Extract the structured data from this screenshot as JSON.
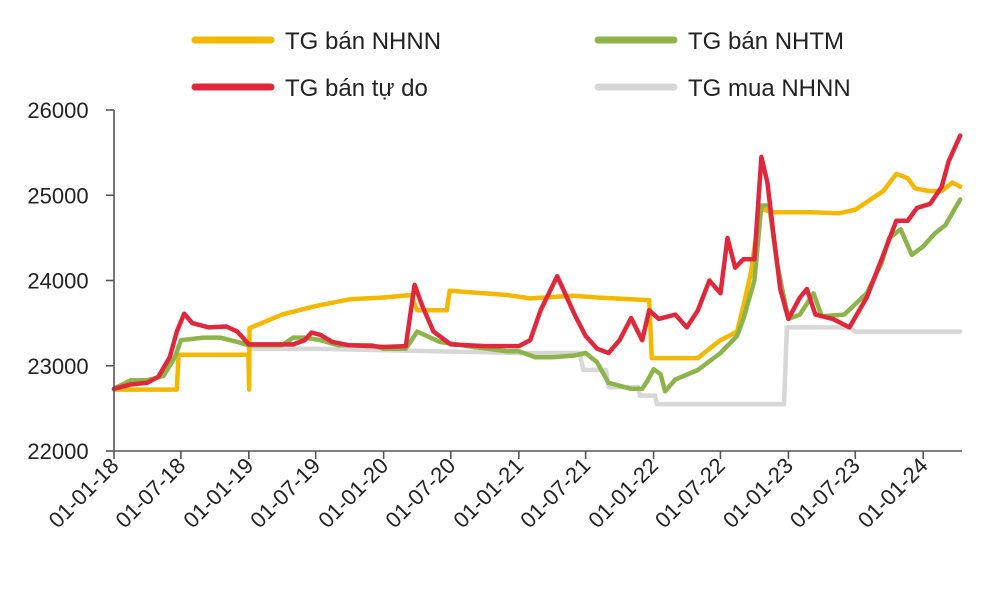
{
  "chart_data": {
    "type": "line",
    "x_type": "date",
    "xlim": [
      "2018-01-01",
      "2024-04-15"
    ],
    "x_ticks": [
      {
        "date": "2018-01-01",
        "label": "01-01-18"
      },
      {
        "date": "2018-07-01",
        "label": "01-07-18"
      },
      {
        "date": "2019-01-01",
        "label": "01-01-19"
      },
      {
        "date": "2019-07-01",
        "label": "01-07-19"
      },
      {
        "date": "2020-01-01",
        "label": "01-01-20"
      },
      {
        "date": "2020-07-01",
        "label": "01-07-20"
      },
      {
        "date": "2021-01-01",
        "label": "01-01-21"
      },
      {
        "date": "2021-07-01",
        "label": "01-07-21"
      },
      {
        "date": "2022-01-01",
        "label": "01-01-22"
      },
      {
        "date": "2022-07-01",
        "label": "01-07-22"
      },
      {
        "date": "2023-01-01",
        "label": "01-01-23"
      },
      {
        "date": "2023-07-01",
        "label": "01-07-23"
      },
      {
        "date": "2024-01-01",
        "label": "01-01-24"
      }
    ],
    "ylim": [
      22000,
      26000
    ],
    "y_ticks": [
      22000,
      23000,
      24000,
      25000,
      26000
    ],
    "grid": false,
    "legend_position": "top",
    "series": [
      {
        "name": "TG bán NHNN",
        "color": "#f5b800",
        "points": [
          [
            "2018-01-01",
            22720
          ],
          [
            "2018-06-20",
            22720
          ],
          [
            "2018-06-25",
            23130
          ],
          [
            "2018-12-31",
            23130
          ],
          [
            "2019-01-02",
            22720
          ],
          [
            "2019-01-03",
            23440
          ],
          [
            "2019-04-01",
            23600
          ],
          [
            "2019-07-01",
            23700
          ],
          [
            "2019-10-01",
            23780
          ],
          [
            "2020-01-01",
            23800
          ],
          [
            "2020-03-15",
            23830
          ],
          [
            "2020-04-01",
            23650
          ],
          [
            "2020-06-20",
            23650
          ],
          [
            "2020-06-28",
            23880
          ],
          [
            "2020-12-01",
            23830
          ],
          [
            "2021-02-01",
            23790
          ],
          [
            "2021-06-01",
            23820
          ],
          [
            "2021-08-01",
            23800
          ],
          [
            "2021-11-01",
            23780
          ],
          [
            "2021-12-20",
            23770
          ],
          [
            "2021-12-27",
            23090
          ],
          [
            "2022-05-01",
            23090
          ],
          [
            "2022-06-01",
            23200
          ],
          [
            "2022-07-01",
            23300
          ],
          [
            "2022-08-15",
            23400
          ],
          [
            "2022-09-01",
            23700
          ],
          [
            "2022-09-20",
            24060
          ],
          [
            "2022-10-17",
            24850
          ],
          [
            "2022-11-15",
            24800
          ],
          [
            "2023-03-01",
            24800
          ],
          [
            "2023-05-20",
            24790
          ],
          [
            "2023-07-01",
            24830
          ],
          [
            "2023-09-15",
            25050
          ],
          [
            "2023-10-20",
            25250
          ],
          [
            "2023-11-20",
            25200
          ],
          [
            "2023-12-10",
            25080
          ],
          [
            "2024-01-15",
            25050
          ],
          [
            "2024-02-20",
            25050
          ],
          [
            "2024-03-20",
            25150
          ],
          [
            "2024-04-10",
            25100
          ]
        ]
      },
      {
        "name": "TG bán NHTM",
        "color": "#8cb44a",
        "points": [
          [
            "2018-01-01",
            22730
          ],
          [
            "2018-02-15",
            22830
          ],
          [
            "2018-04-01",
            22830
          ],
          [
            "2018-05-15",
            22880
          ],
          [
            "2018-06-15",
            23100
          ],
          [
            "2018-07-01",
            23300
          ],
          [
            "2018-09-01",
            23330
          ],
          [
            "2018-10-15",
            23330
          ],
          [
            "2018-12-01",
            23280
          ],
          [
            "2019-01-01",
            23240
          ],
          [
            "2019-04-01",
            23240
          ],
          [
            "2019-05-01",
            23330
          ],
          [
            "2019-06-01",
            23330
          ],
          [
            "2019-07-15",
            23300
          ],
          [
            "2019-09-01",
            23240
          ],
          [
            "2019-12-01",
            23240
          ],
          [
            "2020-01-01",
            23200
          ],
          [
            "2020-03-01",
            23200
          ],
          [
            "2020-04-01",
            23400
          ],
          [
            "2020-06-01",
            23280
          ],
          [
            "2020-09-01",
            23220
          ],
          [
            "2020-12-01",
            23170
          ],
          [
            "2021-01-01",
            23170
          ],
          [
            "2021-02-15",
            23100
          ],
          [
            "2021-04-01",
            23100
          ],
          [
            "2021-06-01",
            23120
          ],
          [
            "2021-07-01",
            23150
          ],
          [
            "2021-08-01",
            23040
          ],
          [
            "2021-09-01",
            22800
          ],
          [
            "2021-11-01",
            22730
          ],
          [
            "2021-12-01",
            22730
          ],
          [
            "2021-12-15",
            22820
          ],
          [
            "2022-01-01",
            22960
          ],
          [
            "2022-01-20",
            22900
          ],
          [
            "2022-02-01",
            22700
          ],
          [
            "2022-03-01",
            22840
          ],
          [
            "2022-05-01",
            22950
          ],
          [
            "2022-07-01",
            23150
          ],
          [
            "2022-08-15",
            23350
          ],
          [
            "2022-09-01",
            23550
          ],
          [
            "2022-10-01",
            24000
          ],
          [
            "2022-10-20",
            24880
          ],
          [
            "2022-11-10",
            24880
          ],
          [
            "2022-12-01",
            24200
          ],
          [
            "2023-01-01",
            23550
          ],
          [
            "2023-02-01",
            23600
          ],
          [
            "2023-03-10",
            23850
          ],
          [
            "2023-04-01",
            23580
          ],
          [
            "2023-06-01",
            23600
          ],
          [
            "2023-08-01",
            23850
          ],
          [
            "2023-09-10",
            24200
          ],
          [
            "2023-10-01",
            24500
          ],
          [
            "2023-11-01",
            24600
          ],
          [
            "2023-12-01",
            24300
          ],
          [
            "2024-01-01",
            24400
          ],
          [
            "2024-02-01",
            24550
          ],
          [
            "2024-03-01",
            24650
          ],
          [
            "2024-04-10",
            24950
          ]
        ]
      },
      {
        "name": "TG bán tự do",
        "color": "#e0283c",
        "points": [
          [
            "2018-01-01",
            22730
          ],
          [
            "2018-02-15",
            22780
          ],
          [
            "2018-04-01",
            22800
          ],
          [
            "2018-05-01",
            22870
          ],
          [
            "2018-06-01",
            23100
          ],
          [
            "2018-06-20",
            23400
          ],
          [
            "2018-07-10",
            23610
          ],
          [
            "2018-08-01",
            23500
          ],
          [
            "2018-09-15",
            23450
          ],
          [
            "2018-11-01",
            23460
          ],
          [
            "2018-12-01",
            23400
          ],
          [
            "2019-01-01",
            23250
          ],
          [
            "2019-05-01",
            23250
          ],
          [
            "2019-06-01",
            23300
          ],
          [
            "2019-06-20",
            23390
          ],
          [
            "2019-07-15",
            23360
          ],
          [
            "2019-08-15",
            23280
          ],
          [
            "2019-10-01",
            23240
          ],
          [
            "2019-12-01",
            23230
          ],
          [
            "2020-01-01",
            23220
          ],
          [
            "2020-03-01",
            23230
          ],
          [
            "2020-03-25",
            23950
          ],
          [
            "2020-04-15",
            23700
          ],
          [
            "2020-05-15",
            23400
          ],
          [
            "2020-07-01",
            23250
          ],
          [
            "2020-10-01",
            23230
          ],
          [
            "2021-01-01",
            23230
          ],
          [
            "2021-02-01",
            23300
          ],
          [
            "2021-03-01",
            23650
          ],
          [
            "2021-04-15",
            24050
          ],
          [
            "2021-05-01",
            23900
          ],
          [
            "2021-06-01",
            23600
          ],
          [
            "2021-07-01",
            23350
          ],
          [
            "2021-08-01",
            23200
          ],
          [
            "2021-09-01",
            23150
          ],
          [
            "2021-10-01",
            23300
          ],
          [
            "2021-11-01",
            23560
          ],
          [
            "2021-12-01",
            23300
          ],
          [
            "2021-12-20",
            23650
          ],
          [
            "2022-01-15",
            23550
          ],
          [
            "2022-03-01",
            23600
          ],
          [
            "2022-04-01",
            23450
          ],
          [
            "2022-05-01",
            23650
          ],
          [
            "2022-06-01",
            24000
          ],
          [
            "2022-07-01",
            23850
          ],
          [
            "2022-07-20",
            24500
          ],
          [
            "2022-08-10",
            24150
          ],
          [
            "2022-09-01",
            24250
          ],
          [
            "2022-10-01",
            24250
          ],
          [
            "2022-10-20",
            25450
          ],
          [
            "2022-11-05",
            25150
          ],
          [
            "2022-11-20",
            24600
          ],
          [
            "2022-12-10",
            23900
          ],
          [
            "2023-01-01",
            23550
          ],
          [
            "2023-02-01",
            23800
          ],
          [
            "2023-02-20",
            23900
          ],
          [
            "2023-03-15",
            23600
          ],
          [
            "2023-05-01",
            23550
          ],
          [
            "2023-06-15",
            23450
          ],
          [
            "2023-08-01",
            23800
          ],
          [
            "2023-09-15",
            24300
          ],
          [
            "2023-10-20",
            24700
          ],
          [
            "2023-11-20",
            24700
          ],
          [
            "2023-12-15",
            24850
          ],
          [
            "2024-01-20",
            24900
          ],
          [
            "2024-02-20",
            25100
          ],
          [
            "2024-03-10",
            25400
          ],
          [
            "2024-04-10",
            25700
          ]
        ]
      },
      {
        "name": "TG mua NHNN",
        "color": "#d7d7d7",
        "points": [
          [
            "2018-12-31",
            23200
          ],
          [
            "2019-07-01",
            23200
          ],
          [
            "2021-01-01",
            23150
          ],
          [
            "2021-06-15",
            23150
          ],
          [
            "2021-06-25",
            22950
          ],
          [
            "2021-08-25",
            22950
          ],
          [
            "2021-09-01",
            22750
          ],
          [
            "2021-11-20",
            22750
          ],
          [
            "2021-11-25",
            22650
          ],
          [
            "2022-01-05",
            22650
          ],
          [
            "2022-01-10",
            22550
          ],
          [
            "2022-12-20",
            22550
          ],
          [
            "2022-12-28",
            23450
          ],
          [
            "2023-06-15",
            23450
          ],
          [
            "2023-07-01",
            23400
          ],
          [
            "2024-04-10",
            23400
          ]
        ]
      }
    ]
  }
}
